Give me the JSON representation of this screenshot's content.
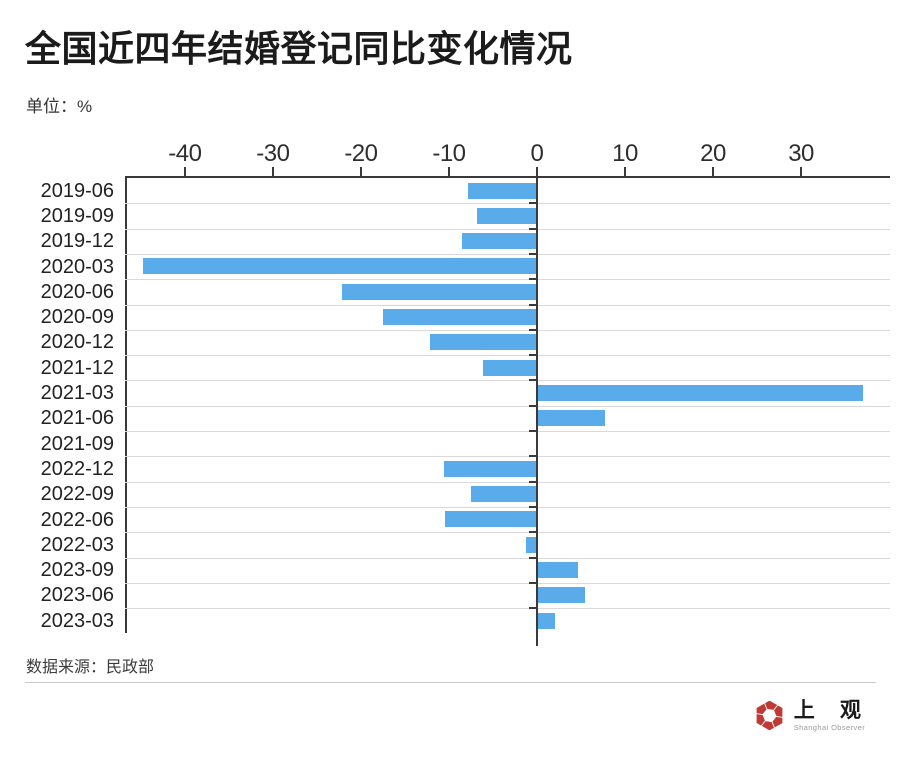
{
  "header": {
    "title": "全国近四年结婚登记同比变化情况",
    "unit_label": "单位：%"
  },
  "footer": {
    "source_label": "数据来源：民政部"
  },
  "logo": {
    "cn_text": "上 观",
    "en_text": "Shanghai Observer",
    "icon_color": "#bf3a34"
  },
  "colors": {
    "bar": "#5aabea",
    "axis": "#3a3a3a",
    "gridline": "#d9d9d9"
  },
  "chart_data": {
    "type": "bar",
    "orientation": "horizontal",
    "title": "全国近四年结婚登记同比变化情况",
    "unit": "%",
    "categories": [
      "2019-06",
      "2019-09",
      "2019-12",
      "2020-03",
      "2020-06",
      "2020-09",
      "2020-12",
      "2021-12",
      "2021-03",
      "2021-06",
      "2021-09",
      "2022-12",
      "2022-09",
      "2022-06",
      "2022-03",
      "2023-09",
      "2023-06",
      "2023-03"
    ],
    "values": [
      -7.8,
      -6.8,
      -8.5,
      -44.7,
      -22.2,
      -17.5,
      -12.2,
      -6.1,
      36.9,
      7.6,
      -0.1,
      -10.6,
      -7.5,
      -10.4,
      -1.2,
      4.5,
      5.3,
      1.9
    ],
    "x_ticks": [
      -40,
      -30,
      -20,
      -10,
      0,
      10,
      20,
      30
    ],
    "xlim": [
      -46.8,
      38.4
    ],
    "grid": "horizontal",
    "legend": "none",
    "bar_color": "#5aabea"
  }
}
